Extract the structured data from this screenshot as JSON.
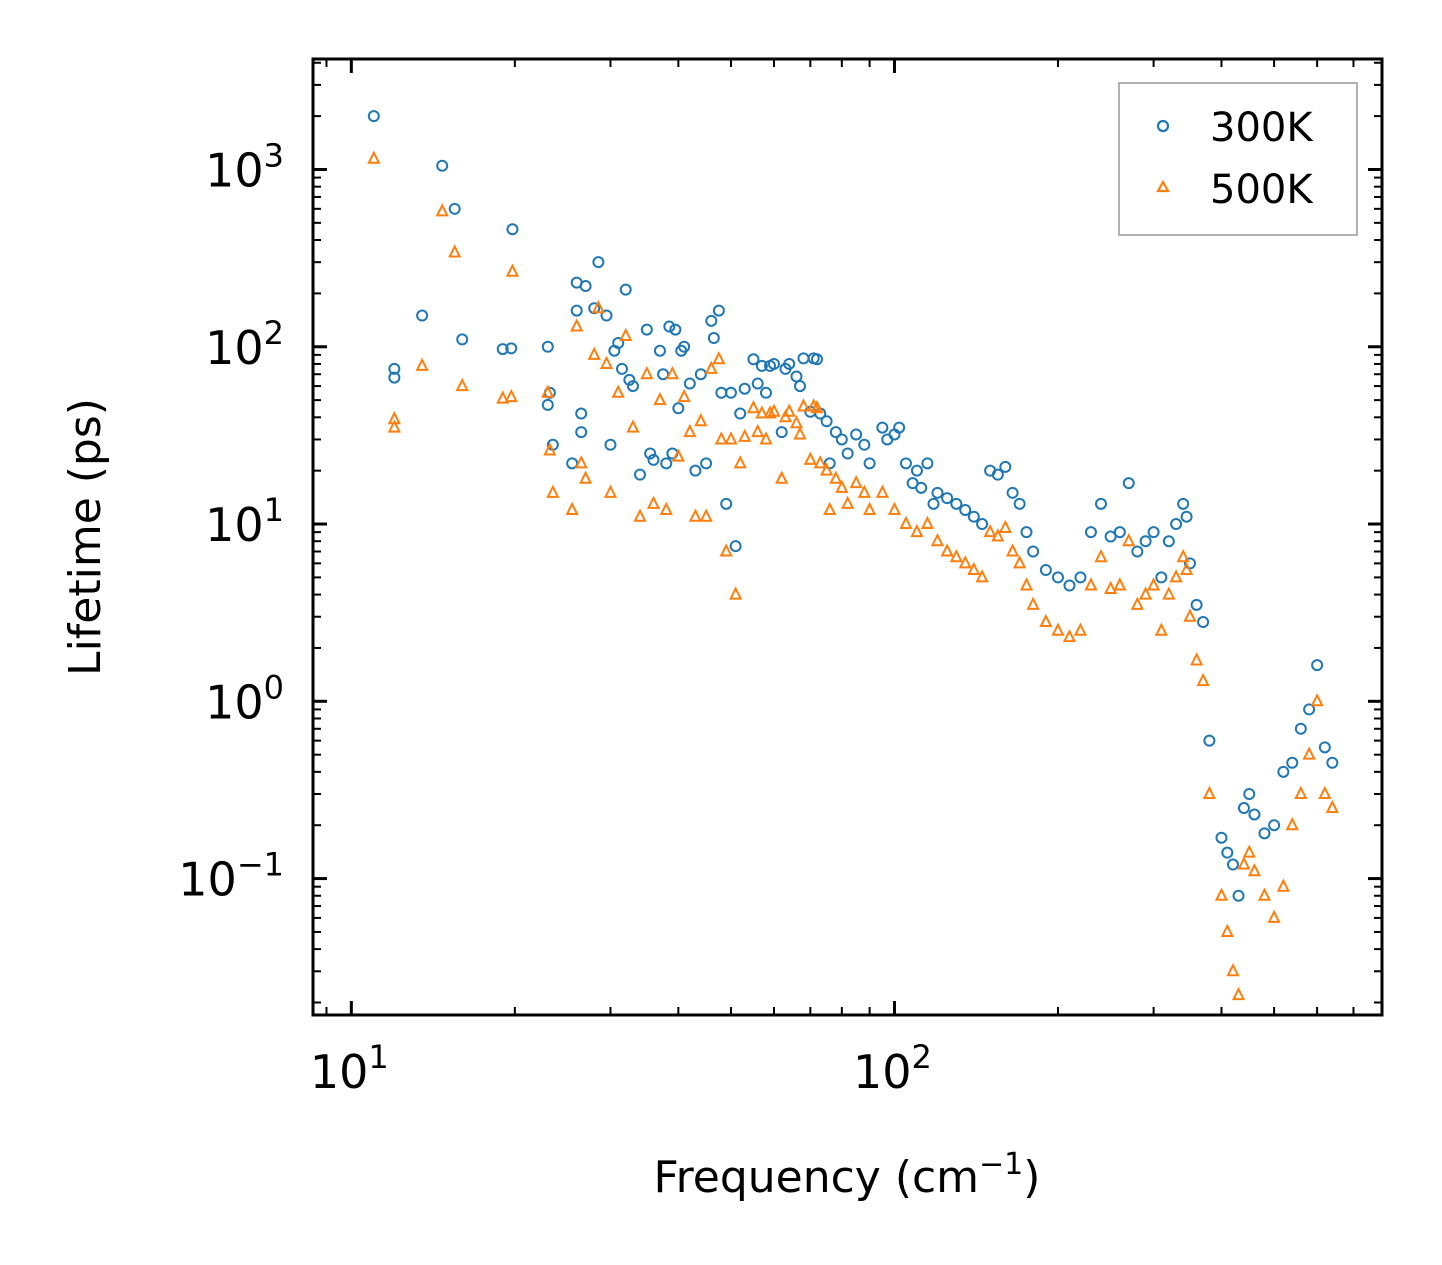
{
  "chart_data": {
    "type": "scatter",
    "title": "",
    "xlabel": "Frequency (cm",
    "xlabel_sup": "−1",
    "xlabel_tail": ")",
    "ylabel": "Lifetime (ps)",
    "xscale": "log",
    "yscale": "log",
    "xlim": [
      8.5,
      790
    ],
    "ylim": [
      0.017,
      4200
    ],
    "grid": false,
    "legend_position": "top-right",
    "x_ticks": [
      {
        "value": 10,
        "base": "10",
        "exp": "1"
      },
      {
        "value": 100,
        "base": "10",
        "exp": "2"
      }
    ],
    "y_ticks": [
      {
        "value": 0.1,
        "base": "10",
        "exp": "−1"
      },
      {
        "value": 1,
        "base": "10",
        "exp": "0"
      },
      {
        "value": 10,
        "base": "10",
        "exp": "1"
      },
      {
        "value": 100,
        "base": "10",
        "exp": "2"
      },
      {
        "value": 1000,
        "base": "10",
        "exp": "3"
      }
    ],
    "series": [
      {
        "name": "300K",
        "marker": "circle",
        "color": "#1f77b4",
        "points": [
          [
            11.0,
            2000
          ],
          [
            12.0,
            75
          ],
          [
            12.0,
            67
          ],
          [
            13.5,
            150
          ],
          [
            14.7,
            1050
          ],
          [
            15.5,
            600
          ],
          [
            16.0,
            110
          ],
          [
            19.0,
            97
          ],
          [
            19.7,
            98
          ],
          [
            19.8,
            460
          ],
          [
            23.0,
            100
          ],
          [
            23.0,
            47
          ],
          [
            23.2,
            55
          ],
          [
            23.5,
            28
          ],
          [
            25.5,
            22
          ],
          [
            26.0,
            230
          ],
          [
            26.0,
            160
          ],
          [
            26.5,
            42
          ],
          [
            26.5,
            33
          ],
          [
            27.0,
            220
          ],
          [
            28.0,
            165
          ],
          [
            28.5,
            300
          ],
          [
            29.5,
            150
          ],
          [
            30.0,
            28
          ],
          [
            30.5,
            95
          ],
          [
            31.0,
            105
          ],
          [
            31.5,
            75
          ],
          [
            32.0,
            210
          ],
          [
            32.5,
            65
          ],
          [
            33.0,
            60
          ],
          [
            34.0,
            19
          ],
          [
            35.0,
            125
          ],
          [
            35.5,
            25
          ],
          [
            36.0,
            23
          ],
          [
            37.0,
            95
          ],
          [
            37.5,
            70
          ],
          [
            38.0,
            22
          ],
          [
            38.5,
            130
          ],
          [
            39.0,
            25
          ],
          [
            39.5,
            125
          ],
          [
            40.0,
            45
          ],
          [
            40.5,
            95
          ],
          [
            41.0,
            100
          ],
          [
            42.0,
            62
          ],
          [
            43.0,
            20
          ],
          [
            44.0,
            70
          ],
          [
            45.0,
            22
          ],
          [
            46.0,
            140
          ],
          [
            46.5,
            112
          ],
          [
            47.5,
            160
          ],
          [
            48.0,
            55
          ],
          [
            49.0,
            13
          ],
          [
            50.0,
            55
          ],
          [
            51.0,
            7.5
          ],
          [
            52.0,
            42
          ],
          [
            53.0,
            58
          ],
          [
            55.0,
            85
          ],
          [
            56.0,
            62
          ],
          [
            57.0,
            78
          ],
          [
            58.0,
            55
          ],
          [
            59.0,
            78
          ],
          [
            60.0,
            80
          ],
          [
            62.0,
            33
          ],
          [
            63.0,
            75
          ],
          [
            64.0,
            80
          ],
          [
            66.0,
            68
          ],
          [
            67.0,
            60
          ],
          [
            68.0,
            86
          ],
          [
            70.0,
            43
          ],
          [
            71.0,
            86
          ],
          [
            72.0,
            85
          ],
          [
            73.0,
            42
          ],
          [
            75.0,
            38
          ],
          [
            76.0,
            22
          ],
          [
            78.0,
            33
          ],
          [
            80.0,
            30
          ],
          [
            82.0,
            25
          ],
          [
            85.0,
            32
          ],
          [
            88.0,
            28
          ],
          [
            90.0,
            22
          ],
          [
            95.0,
            35
          ],
          [
            97.0,
            30
          ],
          [
            100.0,
            32
          ],
          [
            102.0,
            35
          ],
          [
            105.0,
            22
          ],
          [
            108.0,
            17
          ],
          [
            110.0,
            20
          ],
          [
            112.0,
            16
          ],
          [
            115.0,
            22
          ],
          [
            118.0,
            13
          ],
          [
            120.0,
            15
          ],
          [
            125.0,
            14
          ],
          [
            130.0,
            13
          ],
          [
            135.0,
            12
          ],
          [
            140.0,
            11
          ],
          [
            145.0,
            10
          ],
          [
            150.0,
            20
          ],
          [
            155.0,
            19
          ],
          [
            160.0,
            21
          ],
          [
            165.0,
            15
          ],
          [
            170.0,
            13
          ],
          [
            175.0,
            9
          ],
          [
            180.0,
            7
          ],
          [
            190.0,
            5.5
          ],
          [
            200.0,
            5
          ],
          [
            210.0,
            4.5
          ],
          [
            220.0,
            5
          ],
          [
            230.0,
            9
          ],
          [
            240.0,
            13
          ],
          [
            250.0,
            8.5
          ],
          [
            260.0,
            9
          ],
          [
            270.0,
            17
          ],
          [
            280.0,
            7
          ],
          [
            290.0,
            8
          ],
          [
            300.0,
            9
          ],
          [
            310.0,
            5
          ],
          [
            320.0,
            8
          ],
          [
            330.0,
            10
          ],
          [
            340.0,
            13
          ],
          [
            345.0,
            11
          ],
          [
            350.0,
            6
          ],
          [
            360.0,
            3.5
          ],
          [
            370.0,
            2.8
          ],
          [
            380.0,
            0.6
          ],
          [
            400.0,
            0.17
          ],
          [
            410.0,
            0.14
          ],
          [
            420.0,
            0.12
          ],
          [
            430.0,
            0.08
          ],
          [
            440.0,
            0.25
          ],
          [
            450.0,
            0.3
          ],
          [
            460.0,
            0.23
          ],
          [
            480.0,
            0.18
          ],
          [
            500.0,
            0.2
          ],
          [
            520.0,
            0.4
          ],
          [
            540.0,
            0.45
          ],
          [
            560.0,
            0.7
          ],
          [
            580.0,
            0.9
          ],
          [
            600.0,
            1.6
          ],
          [
            620.0,
            0.55
          ],
          [
            640.0,
            0.45
          ]
        ]
      },
      {
        "name": "500K",
        "marker": "triangle",
        "color": "#ff7f0e",
        "points": [
          [
            11.0,
            1150
          ],
          [
            12.0,
            39
          ],
          [
            12.0,
            35
          ],
          [
            13.5,
            78
          ],
          [
            14.7,
            580
          ],
          [
            15.5,
            340
          ],
          [
            16.0,
            60
          ],
          [
            19.0,
            51
          ],
          [
            19.7,
            52
          ],
          [
            19.8,
            265
          ],
          [
            23.0,
            55
          ],
          [
            23.2,
            26
          ],
          [
            23.5,
            15
          ],
          [
            25.5,
            12
          ],
          [
            26.0,
            130
          ],
          [
            26.5,
            22
          ],
          [
            27.0,
            18
          ],
          [
            28.0,
            90
          ],
          [
            28.5,
            165
          ],
          [
            29.5,
            80
          ],
          [
            30.0,
            15
          ],
          [
            31.0,
            55
          ],
          [
            32.0,
            115
          ],
          [
            33.0,
            35
          ],
          [
            34.0,
            11
          ],
          [
            35.0,
            70
          ],
          [
            36.0,
            13
          ],
          [
            37.0,
            50
          ],
          [
            38.0,
            12
          ],
          [
            39.0,
            70
          ],
          [
            40.0,
            24
          ],
          [
            41.0,
            52
          ],
          [
            42.0,
            33
          ],
          [
            43.0,
            11
          ],
          [
            44.0,
            38
          ],
          [
            45.0,
            11
          ],
          [
            46.0,
            75
          ],
          [
            47.5,
            85
          ],
          [
            48.0,
            30
          ],
          [
            49.0,
            7
          ],
          [
            50.0,
            30
          ],
          [
            51.0,
            4
          ],
          [
            52.0,
            22
          ],
          [
            53.0,
            31
          ],
          [
            55.0,
            45
          ],
          [
            56.0,
            33
          ],
          [
            57.0,
            42
          ],
          [
            58.0,
            30
          ],
          [
            59.0,
            42
          ],
          [
            60.0,
            43
          ],
          [
            62.0,
            18
          ],
          [
            63.0,
            40
          ],
          [
            64.0,
            43
          ],
          [
            66.0,
            37
          ],
          [
            67.0,
            32
          ],
          [
            68.0,
            46
          ],
          [
            70.0,
            23
          ],
          [
            71.0,
            46
          ],
          [
            72.0,
            45
          ],
          [
            73.0,
            22
          ],
          [
            75.0,
            20
          ],
          [
            76.0,
            12
          ],
          [
            78.0,
            18
          ],
          [
            80.0,
            16
          ],
          [
            82.0,
            13
          ],
          [
            85.0,
            17
          ],
          [
            88.0,
            15
          ],
          [
            90.0,
            12
          ],
          [
            95.0,
            15
          ],
          [
            100.0,
            12
          ],
          [
            105.0,
            10
          ],
          [
            110.0,
            9
          ],
          [
            115.0,
            10
          ],
          [
            120.0,
            8
          ],
          [
            125.0,
            7
          ],
          [
            130.0,
            6.5
          ],
          [
            135.0,
            6
          ],
          [
            140.0,
            5.5
          ],
          [
            145.0,
            5
          ],
          [
            150.0,
            9
          ],
          [
            155.0,
            8.5
          ],
          [
            160.0,
            9.5
          ],
          [
            165.0,
            7
          ],
          [
            170.0,
            6
          ],
          [
            175.0,
            4.5
          ],
          [
            180.0,
            3.5
          ],
          [
            190.0,
            2.8
          ],
          [
            200.0,
            2.5
          ],
          [
            210.0,
            2.3
          ],
          [
            220.0,
            2.5
          ],
          [
            230.0,
            4.5
          ],
          [
            240.0,
            6.5
          ],
          [
            250.0,
            4.3
          ],
          [
            260.0,
            4.5
          ],
          [
            270.0,
            8
          ],
          [
            280.0,
            3.5
          ],
          [
            290.0,
            4
          ],
          [
            300.0,
            4.5
          ],
          [
            310.0,
            2.5
          ],
          [
            320.0,
            4
          ],
          [
            330.0,
            5
          ],
          [
            340.0,
            6.5
          ],
          [
            345.0,
            5.5
          ],
          [
            350.0,
            3
          ],
          [
            360.0,
            1.7
          ],
          [
            370.0,
            1.3
          ],
          [
            380.0,
            0.3
          ],
          [
            400.0,
            0.08
          ],
          [
            410.0,
            0.05
          ],
          [
            420.0,
            0.03
          ],
          [
            430.0,
            0.022
          ],
          [
            440.0,
            0.12
          ],
          [
            450.0,
            0.14
          ],
          [
            460.0,
            0.11
          ],
          [
            480.0,
            0.08
          ],
          [
            500.0,
            0.06
          ],
          [
            520.0,
            0.09
          ],
          [
            540.0,
            0.2
          ],
          [
            560.0,
            0.3
          ],
          [
            580.0,
            0.5
          ],
          [
            600.0,
            1.0
          ],
          [
            620.0,
            0.3
          ],
          [
            640.0,
            0.25
          ]
        ]
      }
    ]
  }
}
